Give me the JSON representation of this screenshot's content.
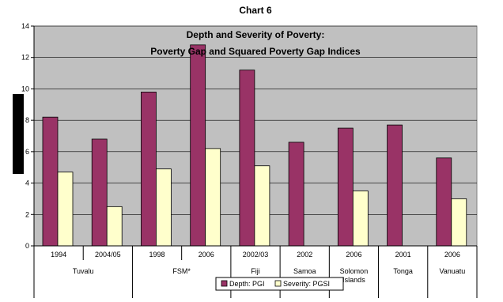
{
  "chart_data": {
    "type": "bar",
    "title": "Chart 6",
    "subtitle_lines": [
      "Depth and Severity of Poverty:",
      "Poverty Gap and Squared Poverty Gap Indices"
    ],
    "xlabel": "",
    "ylabel": "",
    "ylim": [
      0,
      14
    ],
    "yticks": [
      0,
      2,
      4,
      6,
      8,
      10,
      12,
      14
    ],
    "grid": true,
    "legend_position": "bottom",
    "categories": [
      "1994",
      "2004/05",
      "1998",
      "2006",
      "2002/03",
      "2002",
      "2006",
      "2001",
      "2006"
    ],
    "groups": [
      {
        "label": "Tuvalu",
        "span": 2
      },
      {
        "label": "FSM*",
        "span": 2
      },
      {
        "label": "Fiji",
        "span": 1
      },
      {
        "label": "Samoa",
        "span": 1
      },
      {
        "label": "Solomon Islands",
        "span": 1
      },
      {
        "label": "Tonga",
        "span": 1
      },
      {
        "label": "Vanuatu",
        "span": 1
      }
    ],
    "series": [
      {
        "name": "Depth: PGI",
        "color": "#993366",
        "values": [
          8.2,
          6.8,
          9.8,
          12.8,
          11.2,
          6.6,
          7.5,
          7.7,
          5.6
        ]
      },
      {
        "name": "Severity: PGSI",
        "color": "#ffffcc",
        "values": [
          4.7,
          2.5,
          4.9,
          6.2,
          5.1,
          null,
          3.5,
          null,
          3.0
        ]
      }
    ]
  },
  "colors": {
    "plot_background": "#c0c0c0",
    "gridline": "#000000"
  }
}
